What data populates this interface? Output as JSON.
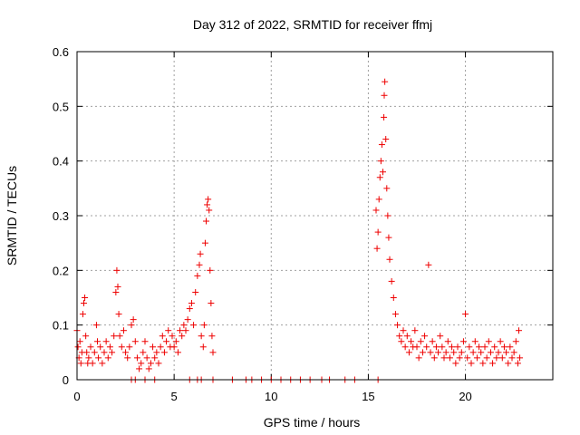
{
  "chart_data": {
    "type": "scatter",
    "title": "Day 312 of 2022, SRMTID for receiver ffmj",
    "xlabel": "GPS time / hours",
    "ylabel": "SRMTID / TECUs",
    "xlim": [
      0,
      24.5
    ],
    "ylim": [
      0,
      0.6
    ],
    "xticks": [
      0,
      5,
      10,
      15,
      20
    ],
    "xtick_labels": [
      "0",
      "5",
      "10",
      "15",
      "20"
    ],
    "yticks": [
      0,
      0.1,
      0.2,
      0.3,
      0.4,
      0.5,
      0.6
    ],
    "ytick_labels": [
      "0",
      "0.1",
      "0.2",
      "0.3",
      "0.4",
      "0.5",
      "0.6"
    ],
    "grid": true,
    "marker": "plus",
    "color": "#ee0000",
    "series": [
      {
        "name": "SRMTID",
        "points": [
          [
            0.0,
            0.09
          ],
          [
            0.05,
            0.06
          ],
          [
            0.1,
            0.04
          ],
          [
            0.15,
            0.07
          ],
          [
            0.2,
            0.03
          ],
          [
            0.25,
            0.05
          ],
          [
            0.3,
            0.12
          ],
          [
            0.35,
            0.14
          ],
          [
            0.4,
            0.15
          ],
          [
            0.45,
            0.08
          ],
          [
            0.5,
            0.05
          ],
          [
            0.55,
            0.03
          ],
          [
            0.6,
            0.04
          ],
          [
            0.7,
            0.06
          ],
          [
            0.8,
            0.03
          ],
          [
            0.9,
            0.05
          ],
          [
            1.0,
            0.1
          ],
          [
            1.05,
            0.07
          ],
          [
            1.1,
            0.04
          ],
          [
            1.2,
            0.06
          ],
          [
            1.3,
            0.03
          ],
          [
            1.4,
            0.05
          ],
          [
            1.5,
            0.07
          ],
          [
            1.6,
            0.04
          ],
          [
            1.7,
            0.06
          ],
          [
            1.8,
            0.05
          ],
          [
            1.9,
            0.08
          ],
          [
            2.0,
            0.16
          ],
          [
            2.05,
            0.2
          ],
          [
            2.1,
            0.17
          ],
          [
            2.15,
            0.12
          ],
          [
            2.2,
            0.08
          ],
          [
            2.3,
            0.06
          ],
          [
            2.4,
            0.09
          ],
          [
            2.5,
            0.05
          ],
          [
            2.6,
            0.04
          ],
          [
            2.7,
            0.06
          ],
          [
            2.8,
            0.1
          ],
          [
            2.9,
            0.11
          ],
          [
            3.0,
            0.07
          ],
          [
            3.1,
            0.04
          ],
          [
            3.2,
            0.02
          ],
          [
            3.3,
            0.03
          ],
          [
            3.4,
            0.05
          ],
          [
            3.5,
            0.07
          ],
          [
            3.6,
            0.04
          ],
          [
            3.7,
            0.02
          ],
          [
            3.8,
            0.03
          ],
          [
            3.9,
            0.06
          ],
          [
            4.0,
            0.04
          ],
          [
            4.1,
            0.05
          ],
          [
            4.2,
            0.03
          ],
          [
            4.3,
            0.06
          ],
          [
            4.4,
            0.08
          ],
          [
            4.5,
            0.05
          ],
          [
            4.6,
            0.07
          ],
          [
            4.7,
            0.09
          ],
          [
            4.8,
            0.06
          ],
          [
            4.9,
            0.08
          ],
          [
            5.0,
            0.06
          ],
          [
            5.1,
            0.07
          ],
          [
            5.2,
            0.05
          ],
          [
            5.3,
            0.09
          ],
          [
            5.4,
            0.08
          ],
          [
            5.5,
            0.1
          ],
          [
            5.6,
            0.09
          ],
          [
            5.7,
            0.11
          ],
          [
            5.8,
            0.13
          ],
          [
            5.9,
            0.14
          ],
          [
            6.0,
            0.1
          ],
          [
            6.1,
            0.16
          ],
          [
            6.2,
            0.19
          ],
          [
            6.3,
            0.21
          ],
          [
            6.35,
            0.23
          ],
          [
            6.4,
            0.08
          ],
          [
            6.5,
            0.06
          ],
          [
            6.55,
            0.1
          ],
          [
            6.6,
            0.25
          ],
          [
            6.65,
            0.29
          ],
          [
            6.7,
            0.32
          ],
          [
            6.75,
            0.33
          ],
          [
            6.8,
            0.31
          ],
          [
            6.85,
            0.2
          ],
          [
            6.9,
            0.14
          ],
          [
            6.95,
            0.08
          ],
          [
            7.0,
            0.05
          ],
          [
            15.4,
            0.31
          ],
          [
            15.45,
            0.24
          ],
          [
            15.5,
            0.27
          ],
          [
            15.55,
            0.33
          ],
          [
            15.6,
            0.37
          ],
          [
            15.65,
            0.4
          ],
          [
            15.7,
            0.43
          ],
          [
            15.75,
            0.38
          ],
          [
            15.8,
            0.48
          ],
          [
            15.82,
            0.52
          ],
          [
            15.85,
            0.545
          ],
          [
            15.9,
            0.44
          ],
          [
            15.95,
            0.35
          ],
          [
            16.0,
            0.3
          ],
          [
            16.05,
            0.26
          ],
          [
            16.1,
            0.22
          ],
          [
            16.2,
            0.18
          ],
          [
            16.3,
            0.15
          ],
          [
            16.4,
            0.12
          ],
          [
            16.5,
            0.1
          ],
          [
            16.6,
            0.08
          ],
          [
            16.7,
            0.07
          ],
          [
            16.8,
            0.09
          ],
          [
            16.9,
            0.06
          ],
          [
            17.0,
            0.08
          ],
          [
            17.1,
            0.05
          ],
          [
            17.2,
            0.07
          ],
          [
            17.3,
            0.06
          ],
          [
            17.4,
            0.09
          ],
          [
            17.5,
            0.06
          ],
          [
            17.6,
            0.04
          ],
          [
            17.7,
            0.07
          ],
          [
            17.8,
            0.05
          ],
          [
            17.9,
            0.08
          ],
          [
            18.0,
            0.06
          ],
          [
            18.1,
            0.21
          ],
          [
            18.2,
            0.05
          ],
          [
            18.3,
            0.07
          ],
          [
            18.4,
            0.04
          ],
          [
            18.5,
            0.06
          ],
          [
            18.6,
            0.05
          ],
          [
            18.7,
            0.08
          ],
          [
            18.8,
            0.06
          ],
          [
            18.9,
            0.04
          ],
          [
            19.0,
            0.05
          ],
          [
            19.1,
            0.07
          ],
          [
            19.2,
            0.04
          ],
          [
            19.3,
            0.06
          ],
          [
            19.4,
            0.05
          ],
          [
            19.5,
            0.03
          ],
          [
            19.6,
            0.06
          ],
          [
            19.7,
            0.04
          ],
          [
            19.8,
            0.05
          ],
          [
            19.9,
            0.07
          ],
          [
            20.0,
            0.12
          ],
          [
            20.1,
            0.04
          ],
          [
            20.2,
            0.06
          ],
          [
            20.3,
            0.03
          ],
          [
            20.4,
            0.05
          ],
          [
            20.5,
            0.07
          ],
          [
            20.6,
            0.04
          ],
          [
            20.7,
            0.06
          ],
          [
            20.8,
            0.05
          ],
          [
            20.9,
            0.03
          ],
          [
            21.0,
            0.06
          ],
          [
            21.1,
            0.04
          ],
          [
            21.2,
            0.07
          ],
          [
            21.3,
            0.05
          ],
          [
            21.4,
            0.03
          ],
          [
            21.5,
            0.06
          ],
          [
            21.6,
            0.04
          ],
          [
            21.7,
            0.05
          ],
          [
            21.8,
            0.07
          ],
          [
            21.9,
            0.04
          ],
          [
            22.0,
            0.06
          ],
          [
            22.1,
            0.05
          ],
          [
            22.2,
            0.03
          ],
          [
            22.3,
            0.06
          ],
          [
            22.4,
            0.04
          ],
          [
            22.5,
            0.05
          ],
          [
            22.6,
            0.07
          ],
          [
            22.7,
            0.03
          ],
          [
            22.75,
            0.09
          ],
          [
            22.8,
            0.04
          ],
          [
            2.8,
            0.0
          ],
          [
            3.0,
            0.0
          ],
          [
            3.5,
            0.0
          ],
          [
            4.0,
            0.0
          ],
          [
            5.8,
            0.0
          ],
          [
            6.2,
            0.0
          ],
          [
            6.4,
            0.0
          ],
          [
            7.0,
            0.0
          ],
          [
            8.0,
            0.0
          ],
          [
            8.7,
            0.0
          ],
          [
            9.0,
            0.0
          ],
          [
            9.5,
            0.0
          ],
          [
            10.0,
            0.0
          ],
          [
            10.5,
            0.0
          ],
          [
            11.0,
            0.0
          ],
          [
            11.5,
            0.0
          ],
          [
            12.0,
            0.0
          ],
          [
            12.6,
            0.0
          ],
          [
            13.0,
            0.0
          ],
          [
            13.8,
            0.0
          ],
          [
            14.3,
            0.0
          ],
          [
            15.5,
            0.0
          ]
        ]
      }
    ]
  }
}
